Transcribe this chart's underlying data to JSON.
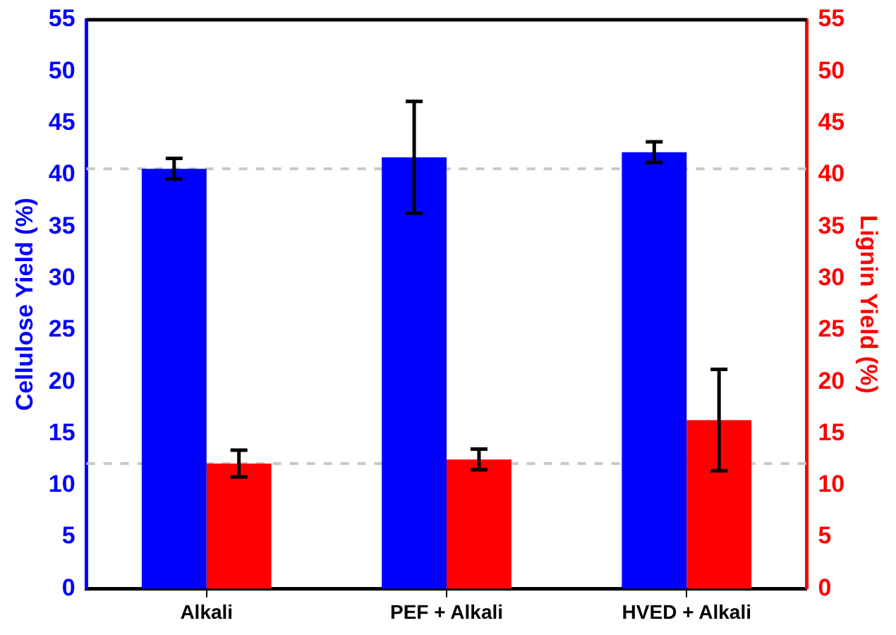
{
  "chart_data": {
    "type": "bar",
    "ylabel": "Cellulose Yield (%)",
    "y2label": "Lignin Yield (%)",
    "categories": [
      "Alkali",
      "PEF + Alkali",
      "HVED + Alkali"
    ],
    "series": [
      {
        "color": "#0000ff",
        "values": [
          40.6,
          41.7,
          42.2
        ],
        "errors": [
          1,
          5.4,
          1
        ]
      },
      {
        "color": "#ff0000",
        "values": [
          12.1,
          12.5,
          16.3
        ],
        "errors": [
          1.3,
          1,
          4.9
        ],
        "axis": "y2"
      }
    ],
    "ylim": [
      0,
      55
    ],
    "yticks": [
      0,
      5,
      10,
      15,
      20,
      25,
      30,
      35,
      40,
      45,
      50,
      55
    ],
    "y2lim": [
      0,
      55
    ],
    "y2ticks": [
      0,
      5,
      10,
      15,
      20,
      25,
      30,
      35,
      40,
      45,
      50,
      55
    ],
    "ref_lines": [
      {
        "axis": "y",
        "value": 40.6,
        "color": "#c8c8c8",
        "line_style": "dashed"
      },
      {
        "axis": "y",
        "value": 12.1,
        "color": "#c8c8c8",
        "line_style": "dashed"
      }
    ],
    "grid": false,
    "legend": false
  }
}
